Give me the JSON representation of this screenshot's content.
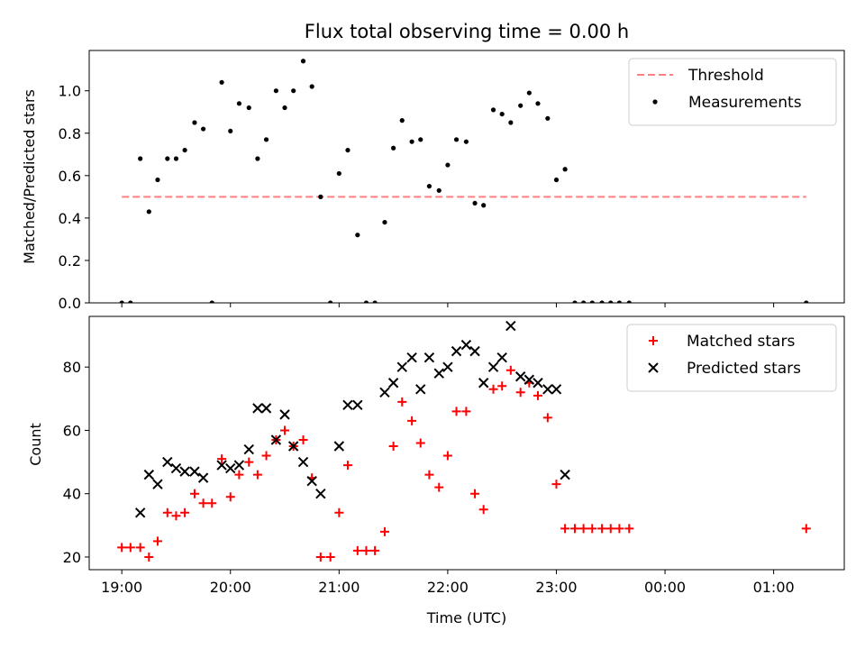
{
  "chart_data": {
    "title": "Flux total observing time = 0.00 h",
    "xlabel": "Time (UTC)",
    "x_ticks": [
      "19:00",
      "20:00",
      "21:00",
      "22:00",
      "23:00",
      "00:00",
      "01:00"
    ],
    "x_tick_hours": [
      19,
      20,
      21,
      22,
      23,
      24,
      25
    ],
    "xlim": [
      18.7,
      25.65
    ],
    "panels": [
      {
        "id": "ratio",
        "type": "scatter",
        "ylabel": "Matched/Predicted stars",
        "ylim": [
          0,
          1.19
        ],
        "y_ticks": [
          0.0,
          0.2,
          0.4,
          0.6,
          0.8,
          1.0
        ],
        "y_tick_labels": [
          "0.0",
          "0.2",
          "0.4",
          "0.6",
          "0.8",
          "1.0"
        ],
        "legend": "top-right",
        "threshold": {
          "name": "Threshold",
          "y": 0.5,
          "x_range": [
            19.0,
            25.3
          ],
          "color": "#ff8080"
        },
        "series": [
          {
            "name": "Measurements",
            "marker": "dot",
            "color": "#000000",
            "points": [
              [
                19.0,
                0.0
              ],
              [
                19.08,
                0.0
              ],
              [
                19.17,
                0.68
              ],
              [
                19.25,
                0.43
              ],
              [
                19.33,
                0.58
              ],
              [
                19.42,
                0.68
              ],
              [
                19.5,
                0.68
              ],
              [
                19.58,
                0.72
              ],
              [
                19.67,
                0.85
              ],
              [
                19.75,
                0.82
              ],
              [
                19.83,
                0.0
              ],
              [
                19.92,
                1.04
              ],
              [
                20.0,
                0.81
              ],
              [
                20.08,
                0.94
              ],
              [
                20.17,
                0.92
              ],
              [
                20.25,
                0.68
              ],
              [
                20.33,
                0.77
              ],
              [
                20.42,
                1.0
              ],
              [
                20.5,
                0.92
              ],
              [
                20.58,
                1.0
              ],
              [
                20.67,
                1.14
              ],
              [
                20.75,
                1.02
              ],
              [
                20.83,
                0.5
              ],
              [
                20.92,
                0.0
              ],
              [
                21.0,
                0.61
              ],
              [
                21.08,
                0.72
              ],
              [
                21.17,
                0.32
              ],
              [
                21.25,
                0.0
              ],
              [
                21.33,
                0.0
              ],
              [
                21.42,
                0.38
              ],
              [
                21.5,
                0.73
              ],
              [
                21.58,
                0.86
              ],
              [
                21.67,
                0.76
              ],
              [
                21.75,
                0.77
              ],
              [
                21.83,
                0.55
              ],
              [
                21.92,
                0.53
              ],
              [
                22.0,
                0.65
              ],
              [
                22.08,
                0.77
              ],
              [
                22.17,
                0.76
              ],
              [
                22.25,
                0.47
              ],
              [
                22.33,
                0.46
              ],
              [
                22.42,
                0.91
              ],
              [
                22.5,
                0.89
              ],
              [
                22.58,
                0.85
              ],
              [
                22.67,
                0.93
              ],
              [
                22.75,
                0.99
              ],
              [
                22.83,
                0.94
              ],
              [
                22.92,
                0.87
              ],
              [
                23.0,
                0.58
              ],
              [
                23.08,
                0.63
              ],
              [
                23.17,
                0.0
              ],
              [
                23.25,
                0.0
              ],
              [
                23.33,
                0.0
              ],
              [
                23.42,
                0.0
              ],
              [
                23.5,
                0.0
              ],
              [
                23.58,
                0.0
              ],
              [
                23.67,
                0.0
              ],
              [
                25.3,
                0.0
              ]
            ]
          }
        ]
      },
      {
        "id": "count",
        "type": "scatter",
        "ylabel": "Count",
        "ylim": [
          16,
          96
        ],
        "y_ticks": [
          20,
          40,
          60,
          80
        ],
        "y_tick_labels": [
          "20",
          "40",
          "60",
          "80"
        ],
        "legend": "top-right",
        "series": [
          {
            "name": "Matched stars",
            "marker": "plus",
            "color": "#ff0000",
            "points": [
              [
                19.0,
                23
              ],
              [
                19.08,
                23
              ],
              [
                19.17,
                23
              ],
              [
                19.25,
                20
              ],
              [
                19.33,
                25
              ],
              [
                19.42,
                34
              ],
              [
                19.5,
                33
              ],
              [
                19.58,
                34
              ],
              [
                19.67,
                40
              ],
              [
                19.75,
                37
              ],
              [
                19.83,
                37
              ],
              [
                19.92,
                51
              ],
              [
                20.0,
                39
              ],
              [
                20.08,
                46
              ],
              [
                20.17,
                50
              ],
              [
                20.25,
                46
              ],
              [
                20.33,
                52
              ],
              [
                20.42,
                57
              ],
              [
                20.5,
                60
              ],
              [
                20.58,
                55
              ],
              [
                20.67,
                57
              ],
              [
                20.75,
                45
              ],
              [
                20.83,
                20
              ],
              [
                20.92,
                20
              ],
              [
                21.0,
                34
              ],
              [
                21.08,
                49
              ],
              [
                21.17,
                22
              ],
              [
                21.25,
                22
              ],
              [
                21.33,
                22
              ],
              [
                21.42,
                28
              ],
              [
                21.5,
                55
              ],
              [
                21.58,
                69
              ],
              [
                21.67,
                63
              ],
              [
                21.75,
                56
              ],
              [
                21.83,
                46
              ],
              [
                21.92,
                42
              ],
              [
                22.0,
                52
              ],
              [
                22.08,
                66
              ],
              [
                22.17,
                66
              ],
              [
                22.25,
                40
              ],
              [
                22.33,
                35
              ],
              [
                22.42,
                73
              ],
              [
                22.5,
                74
              ],
              [
                22.58,
                79
              ],
              [
                22.67,
                72
              ],
              [
                22.75,
                75
              ],
              [
                22.83,
                71
              ],
              [
                22.92,
                64
              ],
              [
                23.0,
                43
              ],
              [
                23.08,
                29
              ],
              [
                23.17,
                29
              ],
              [
                23.25,
                29
              ],
              [
                23.33,
                29
              ],
              [
                23.42,
                29
              ],
              [
                23.5,
                29
              ],
              [
                23.58,
                29
              ],
              [
                23.67,
                29
              ],
              [
                25.3,
                29
              ]
            ]
          },
          {
            "name": "Predicted stars",
            "marker": "x",
            "color": "#000000",
            "points": [
              [
                19.17,
                34
              ],
              [
                19.25,
                46
              ],
              [
                19.33,
                43
              ],
              [
                19.42,
                50
              ],
              [
                19.5,
                48
              ],
              [
                19.58,
                47
              ],
              [
                19.67,
                47
              ],
              [
                19.75,
                45
              ],
              [
                19.92,
                49
              ],
              [
                20.0,
                48
              ],
              [
                20.08,
                49
              ],
              [
                20.17,
                54
              ],
              [
                20.25,
                67
              ],
              [
                20.33,
                67
              ],
              [
                20.42,
                57
              ],
              [
                20.5,
                65
              ],
              [
                20.58,
                55
              ],
              [
                20.67,
                50
              ],
              [
                20.75,
                44
              ],
              [
                20.83,
                40
              ],
              [
                21.0,
                55
              ],
              [
                21.08,
                68
              ],
              [
                21.17,
                68
              ],
              [
                21.42,
                72
              ],
              [
                21.5,
                75
              ],
              [
                21.58,
                80
              ],
              [
                21.67,
                83
              ],
              [
                21.75,
                73
              ],
              [
                21.83,
                83
              ],
              [
                21.92,
                78
              ],
              [
                22.0,
                80
              ],
              [
                22.08,
                85
              ],
              [
                22.17,
                87
              ],
              [
                22.25,
                85
              ],
              [
                22.33,
                75
              ],
              [
                22.42,
                80
              ],
              [
                22.5,
                83
              ],
              [
                22.58,
                93
              ],
              [
                22.67,
                77
              ],
              [
                22.75,
                76
              ],
              [
                22.83,
                75
              ],
              [
                22.92,
                73
              ],
              [
                23.0,
                73
              ],
              [
                23.08,
                46
              ]
            ]
          }
        ]
      }
    ]
  }
}
